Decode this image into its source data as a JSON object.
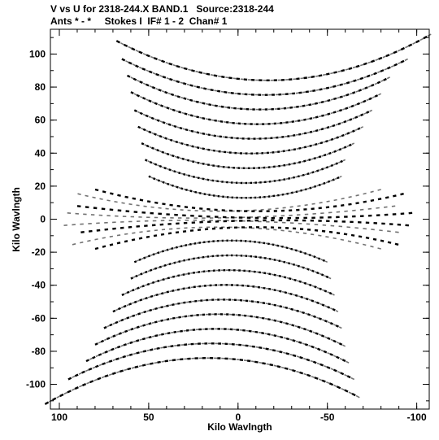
{
  "header": {
    "title_line_1": "V vs U for 2318-244.X BAND.1   Source:2318-244",
    "title_line_2": "Ants * - *     Stokes I  IF# 1 - 2  Chan# 1"
  },
  "chart_data": {
    "type": "scatter",
    "title": "V vs U for 2318-244.X BAND.1   Source:2318-244",
    "subtitle": "Ants * - *     Stokes I  IF# 1 - 2  Chan# 1",
    "xlabel": "Kilo Wavlngth",
    "ylabel": "Kilo Wavlngth",
    "xlim": [
      105,
      -107
    ],
    "ylim": [
      -115,
      115
    ],
    "x_ticks": [
      100,
      50,
      0,
      -50,
      -100
    ],
    "y_ticks": [
      100,
      80,
      60,
      40,
      20,
      0,
      -20,
      -40,
      -60,
      -80,
      -100
    ],
    "x_tick_labels": [
      "100",
      "50",
      "0",
      "-50",
      "-100"
    ],
    "y_tick_labels": [
      "100",
      "80",
      "60",
      "40",
      "20",
      "0",
      "-20",
      "-40",
      "-60",
      "-80",
      "-100"
    ],
    "marker_color": "#000000",
    "grid": false,
    "tracks": [
      {
        "u_start": 68,
        "u_end": -108,
        "v_start": 108,
        "v_end": 112,
        "v_mid": 85
      },
      {
        "u_start": 65,
        "u_end": -95,
        "v_start": 97,
        "v_end": 97,
        "v_mid": 76
      },
      {
        "u_start": 62,
        "u_end": -85,
        "v_start": 87,
        "v_end": 86,
        "v_mid": 67
      },
      {
        "u_start": 60,
        "u_end": -80,
        "v_start": 77,
        "v_end": 76,
        "v_mid": 58
      },
      {
        "u_start": 58,
        "u_end": -75,
        "v_start": 66,
        "v_end": 66,
        "v_mid": 49
      },
      {
        "u_start": 56,
        "u_end": -70,
        "v_start": 56,
        "v_end": 56,
        "v_mid": 40
      },
      {
        "u_start": 54,
        "u_end": -65,
        "v_start": 46,
        "v_end": 46,
        "v_mid": 31
      },
      {
        "u_start": 52,
        "u_end": -60,
        "v_start": 36,
        "v_end": 36,
        "v_mid": 22
      },
      {
        "u_start": 50,
        "u_end": -58,
        "v_start": 26,
        "v_end": 26,
        "v_mid": 13
      },
      {
        "u_start": 80,
        "u_end": -95,
        "v_start": 18,
        "v_end": 16,
        "v_mid": 5
      },
      {
        "u_start": 90,
        "u_end": -100,
        "v_start": 8,
        "v_end": 4,
        "v_mid": 1
      },
      {
        "u_start": 88,
        "u_end": -98,
        "v_start": -8,
        "v_end": -4,
        "v_mid": -1
      },
      {
        "u_start": 80,
        "u_end": -92,
        "v_start": -18,
        "v_end": -16,
        "v_mid": -5
      },
      {
        "u_start": 58,
        "u_end": -50,
        "v_start": -26,
        "v_end": -26,
        "v_mid": -13
      },
      {
        "u_start": 60,
        "u_end": -52,
        "v_start": -36,
        "v_end": -36,
        "v_mid": -22
      },
      {
        "u_start": 65,
        "u_end": -54,
        "v_start": -46,
        "v_end": -46,
        "v_mid": -31
      },
      {
        "u_start": 70,
        "u_end": -56,
        "v_start": -56,
        "v_end": -56,
        "v_mid": -40
      },
      {
        "u_start": 75,
        "u_end": -58,
        "v_start": -66,
        "v_end": -66,
        "v_mid": -49
      },
      {
        "u_start": 80,
        "u_end": -60,
        "v_start": -76,
        "v_end": -77,
        "v_mid": -58
      },
      {
        "u_start": 85,
        "u_end": -62,
        "v_start": -86,
        "v_end": -87,
        "v_mid": -67
      },
      {
        "u_start": 95,
        "u_end": -65,
        "v_start": -97,
        "v_end": -97,
        "v_mid": -76
      },
      {
        "u_start": 108,
        "u_end": -68,
        "v_start": -112,
        "v_end": -108,
        "v_mid": -85
      }
    ]
  }
}
